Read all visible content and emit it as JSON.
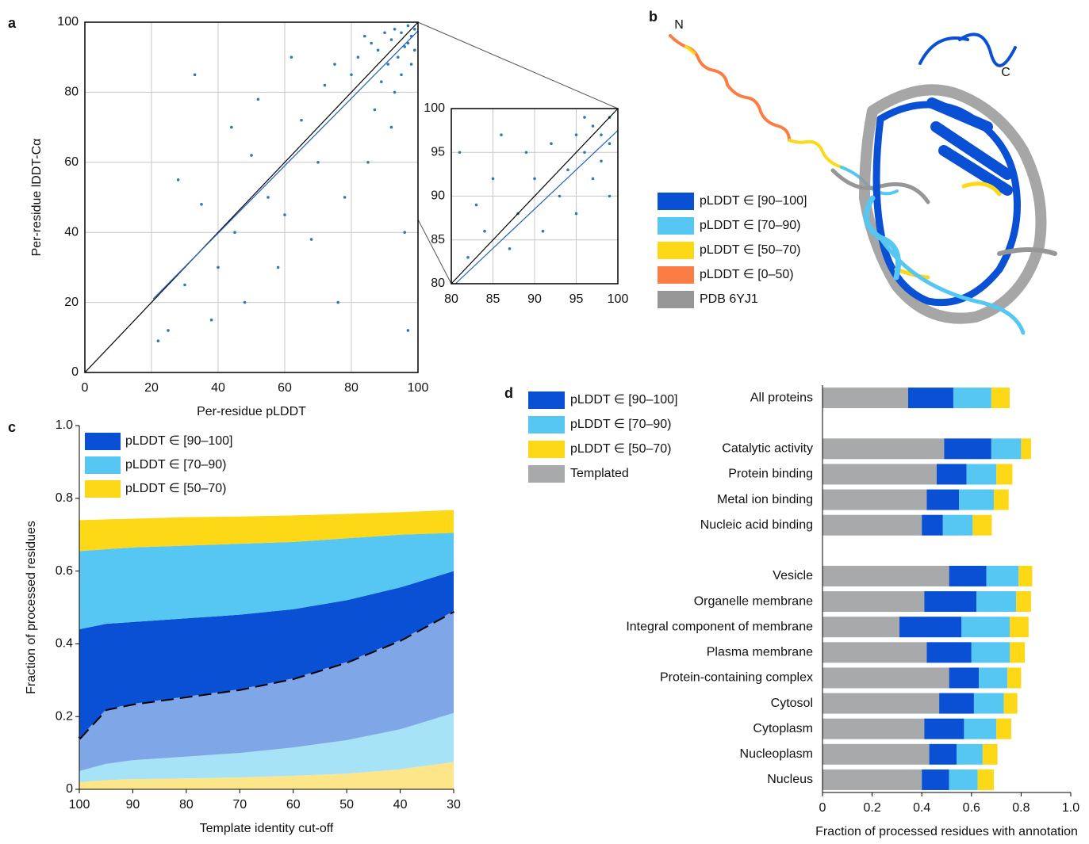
{
  "chart_data": [
    {
      "type": "scatter",
      "panel_label": "a",
      "x_label": "Per-residue pLDDT",
      "y_label": "Per-residue lDDT-Cα",
      "xlim": [
        0,
        100
      ],
      "ylim": [
        0,
        100
      ],
      "xticks": [
        0,
        20,
        40,
        60,
        80,
        100
      ],
      "yticks": [
        0,
        20,
        40,
        60,
        80,
        100
      ],
      "grid": true,
      "color": "#2b7bba",
      "x": [
        92,
        95,
        97,
        98,
        94,
        96,
        99,
        93,
        91,
        97,
        88,
        90,
        86,
        95,
        99,
        84,
        89,
        98,
        82,
        93,
        87,
        80,
        75,
        70,
        65,
        60,
        55,
        50,
        45,
        40,
        35,
        30,
        25,
        28,
        38,
        48,
        58,
        68,
        78,
        85,
        92,
        96,
        72,
        62,
        52,
        44,
        33,
        22,
        97,
        76
      ],
      "y": [
        95,
        97,
        99,
        96,
        90,
        93,
        98,
        98,
        88,
        94,
        92,
        97,
        94,
        85,
        92,
        96,
        83,
        88,
        90,
        80,
        75,
        85,
        88,
        60,
        72,
        45,
        50,
        62,
        40,
        30,
        48,
        25,
        12,
        55,
        15,
        20,
        30,
        38,
        50,
        60,
        70,
        40,
        82,
        90,
        78,
        70,
        85,
        9,
        12,
        20
      ],
      "lines": [
        {
          "x": [
            0,
            100
          ],
          "y": [
            0,
            100
          ],
          "color": "#000000"
        },
        {
          "x": [
            20.5,
            100
          ],
          "y": [
            21,
            97.5
          ],
          "color": "#1f5fc4"
        }
      ]
    },
    {
      "type": "scatter",
      "xlim": [
        80,
        100
      ],
      "ylim": [
        80,
        100
      ],
      "xticks": [
        80,
        85,
        90,
        95,
        100
      ],
      "yticks": [
        80,
        85,
        90,
        95,
        100
      ],
      "grid": true,
      "color": "#2b7bba",
      "x": [
        99,
        98,
        97,
        96,
        99,
        95,
        94,
        97,
        92,
        93,
        98,
        90,
        89,
        91,
        88,
        85,
        87,
        83,
        82,
        86,
        95,
        99,
        84,
        81,
        96
      ],
      "y": [
        99,
        97,
        98,
        95,
        96,
        97,
        93,
        92,
        96,
        90,
        94,
        92,
        95,
        86,
        88,
        92,
        84,
        89,
        83,
        97,
        88,
        90,
        86,
        95,
        99
      ],
      "lines": [
        {
          "x": [
            80,
            100
          ],
          "y": [
            80,
            100
          ],
          "color": "#000000"
        },
        {
          "x": [
            80.5,
            100
          ],
          "y": [
            80,
            97.5
          ],
          "color": "#1f5fc4"
        }
      ]
    },
    {
      "type": "area",
      "panel_label": "c",
      "x_label": "Template identity cut-off",
      "y_label": "Fraction of processed residues",
      "x": [
        100,
        95,
        90,
        80,
        70,
        60,
        50,
        40,
        30
      ],
      "xlim": [
        100,
        30
      ],
      "xticks": [
        100,
        90,
        80,
        70,
        60,
        50,
        40,
        30
      ],
      "ylim": [
        0,
        1
      ],
      "yticks": [
        0,
        0.2,
        0.4,
        0.6,
        0.8,
        {
          "value": 1,
          "label": "1.0"
        }
      ],
      "series": [
        {
          "color": "#fde68a",
          "values": [
            0.02,
            0.025,
            0.028,
            0.03,
            0.033,
            0.037,
            0.043,
            0.055,
            0.075
          ]
        },
        {
          "color": "#a7e3f7",
          "values": [
            0.03,
            0.045,
            0.052,
            0.06,
            0.067,
            0.078,
            0.092,
            0.11,
            0.135
          ]
        },
        {
          "color": "#7fa7e8",
          "outline": "dashed",
          "values": [
            0.09,
            0.15,
            0.155,
            0.165,
            0.175,
            0.19,
            0.215,
            0.245,
            0.28
          ]
        },
        {
          "name": "pLDDT ∈ [90–100]",
          "color": "#0a50d4",
          "values": [
            0.3,
            0.235,
            0.225,
            0.215,
            0.205,
            0.19,
            0.17,
            0.145,
            0.11
          ]
        },
        {
          "name": "pLDDT ∈ [70–90)",
          "color": "#56c7f3",
          "values": [
            0.215,
            0.205,
            0.205,
            0.2,
            0.195,
            0.185,
            0.17,
            0.145,
            0.105
          ]
        },
        {
          "name": "pLDDT ∈ [50–70)",
          "color": "#fdd816",
          "values": [
            0.085,
            0.082,
            0.079,
            0.078,
            0.075,
            0.073,
            0.067,
            0.062,
            0.063
          ]
        }
      ]
    },
    {
      "type": "hbar",
      "panel_label": "d",
      "x_label": "Fraction of processed residues with annotation",
      "xlim": [
        0,
        1
      ],
      "xticks": [
        0,
        0.2,
        0.4,
        0.6,
        0.8,
        {
          "value": 1,
          "label": "1.0"
        }
      ],
      "categories": [
        "All proteins",
        null,
        "Catalytic activity",
        "Protein binding",
        "Metal ion binding",
        "Nucleic acid binding",
        null,
        "Vesicle",
        "Organelle membrane",
        "Integral component of membrane",
        "Plasma membrane",
        "Protein-containing complex",
        "Cytosol",
        "Cytoplasm",
        "Nucleoplasm",
        "Nucleus"
      ],
      "series": [
        {
          "name": "Templated",
          "color": "#a7a9ab",
          "values": [
            0.345,
            null,
            0.49,
            0.46,
            0.42,
            0.4,
            null,
            0.51,
            0.41,
            0.31,
            0.42,
            0.51,
            0.47,
            0.41,
            0.43,
            0.4
          ]
        },
        {
          "name": "pLDDT ∈ [90–100]",
          "color": "#0a50d4",
          "values": [
            0.182,
            null,
            0.19,
            0.12,
            0.13,
            0.085,
            null,
            0.15,
            0.21,
            0.25,
            0.18,
            0.12,
            0.14,
            0.16,
            0.11,
            0.11
          ]
        },
        {
          "name": "pLDDT ∈ [70–90)",
          "color": "#56c7f3",
          "values": [
            0.153,
            null,
            0.12,
            0.12,
            0.14,
            0.12,
            null,
            0.13,
            0.16,
            0.195,
            0.155,
            0.115,
            0.12,
            0.13,
            0.105,
            0.115
          ]
        },
        {
          "name": "pLDDT ∈ [50–70)",
          "color": "#fdd816",
          "values": [
            0.074,
            null,
            0.04,
            0.065,
            0.06,
            0.077,
            null,
            0.055,
            0.06,
            0.075,
            0.06,
            0.055,
            0.055,
            0.06,
            0.06,
            0.065
          ]
        }
      ]
    }
  ],
  "structure_panel": {
    "panel_label": "b",
    "n_terminus": "N",
    "c_terminus": "C",
    "legend": [
      {
        "label": "pLDDT ∈ [90–100]",
        "color": "#0a50d4"
      },
      {
        "label": "pLDDT ∈ [70–90)",
        "color": "#56c7f3"
      },
      {
        "label": "pLDDT ∈ [50–70)",
        "color": "#fdd816"
      },
      {
        "label": "pLDDT ∈ [0–50)",
        "color": "#fb7d45"
      },
      {
        "label": "PDB 6YJ1",
        "color": "#969696"
      }
    ]
  }
}
